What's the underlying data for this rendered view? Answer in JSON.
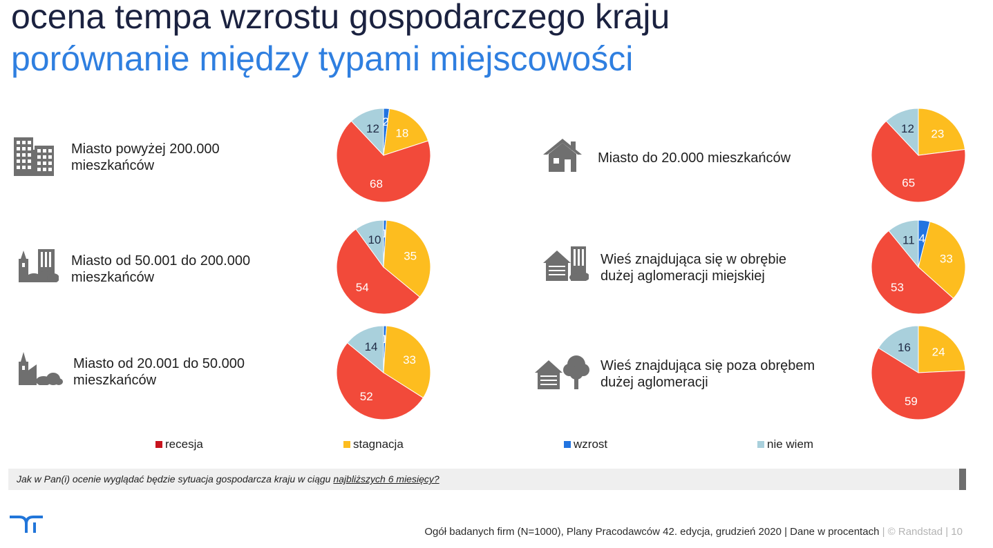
{
  "header": {
    "title": "ocena tempa wzrostu gospodarczego kraju",
    "subtitle": "porównanie między typami miejscowości"
  },
  "colors": {
    "recesja": "#f24a3a",
    "stagnacja": "#fdbd1f",
    "wzrost": "#2274e0",
    "nie_wiem": "#a9d0dc",
    "icon": "#6f6f6f",
    "title": "#1b2240",
    "subtitle": "#2f7fe0"
  },
  "panels": [
    {
      "icon": "office-buildings-icon",
      "label_lines": [
        "Miasto powyżej 200.000",
        "mieszkańców"
      ]
    },
    {
      "icon": "city-church-icon",
      "label_lines": [
        "Miasto od 50.001 do 200.000",
        "mieszkańców"
      ]
    },
    {
      "icon": "town-church-icon",
      "label_lines": [
        "Miasto od 20.001 do 50.000",
        "mieszkańców"
      ]
    },
    {
      "icon": "house-icon",
      "label_lines": [
        "Miasto do 20.000 mieszkańców"
      ]
    },
    {
      "icon": "village-suburb-icon",
      "label_lines": [
        "Wieś znajdująca się w obrębie",
        "dużej aglomeracji miejskiej"
      ]
    },
    {
      "icon": "village-tree-icon",
      "label_lines": [
        "Wieś znajdująca się poza obrębem",
        "dużej aglomeracji"
      ]
    }
  ],
  "chart_data": [
    {
      "type": "pie",
      "title": "Miasto powyżej 200.000 mieszkańców",
      "categories": [
        "wzrost",
        "stagnacja",
        "recesja",
        "nie wiem"
      ],
      "values": [
        2,
        18,
        68,
        12
      ],
      "labels": [
        "2",
        "18",
        "68",
        "12"
      ]
    },
    {
      "type": "pie",
      "title": "Miasto od 50.001 do 200.000 mieszkańców",
      "categories": [
        "wzrost",
        "stagnacja",
        "recesja",
        "nie wiem"
      ],
      "values": [
        1,
        35,
        54,
        10
      ],
      "labels": [
        "1",
        "35",
        "54",
        "10"
      ]
    },
    {
      "type": "pie",
      "title": "Miasto od 20.001 do 50.000 mieszkańców",
      "categories": [
        "wzrost",
        "stagnacja",
        "recesja",
        "nie wiem"
      ],
      "values": [
        1,
        33,
        52,
        14
      ],
      "labels": [
        "1",
        "33",
        "52",
        "14"
      ]
    },
    {
      "type": "pie",
      "title": "Miasto do 20.000 mieszkańców",
      "categories": [
        "wzrost",
        "stagnacja",
        "recesja",
        "nie wiem"
      ],
      "values": [
        0,
        23,
        65,
        12
      ],
      "labels": [
        "",
        "23",
        "65",
        "12"
      ]
    },
    {
      "type": "pie",
      "title": "Wieś znajdująca się w obrębie dużej aglomeracji miejskiej",
      "categories": [
        "wzrost",
        "stagnacja",
        "recesja",
        "nie wiem"
      ],
      "values": [
        4,
        33,
        53,
        11
      ],
      "labels": [
        "4",
        "33",
        "53",
        "11"
      ]
    },
    {
      "type": "pie",
      "title": "Wieś znajdująca się poza obrębem dużej aglomeracji",
      "categories": [
        "wzrost",
        "stagnacja",
        "recesja",
        "nie wiem"
      ],
      "values": [
        0,
        24,
        59,
        16
      ],
      "labels": [
        "",
        "24",
        "59",
        "16"
      ]
    }
  ],
  "legend": {
    "placement": "bottom",
    "items": [
      {
        "key": "recesja",
        "label": "recesja"
      },
      {
        "key": "stagnacja",
        "label": "stagnacja"
      },
      {
        "key": "wzrost",
        "label": "wzrost"
      },
      {
        "key": "nie_wiem",
        "label": "nie wiem"
      }
    ]
  },
  "question": {
    "prefix": "Jak w Pan(i) ocenie wyglądać będzie sytuacja gospodarcza kraju w ciągu ",
    "underlined": "najbliższych 6 miesięcy?"
  },
  "footer": {
    "source": "Ogół badanych firm (N=1000), Plany Pracodawców 42. edycja, grudzień 2020  |  Dane w procentach",
    "copyright": "|  © Randstad  |  10"
  }
}
